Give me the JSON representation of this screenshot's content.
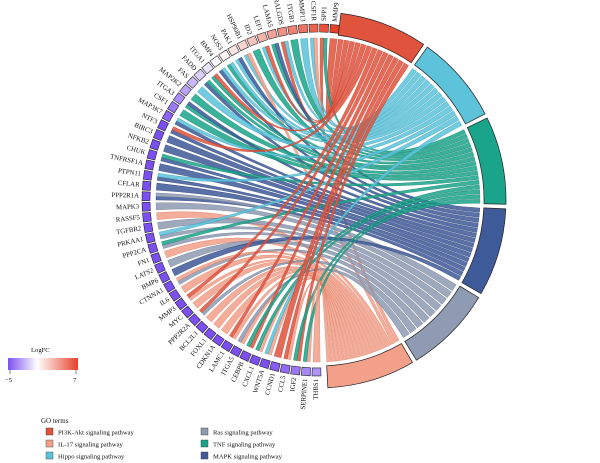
{
  "figure": {
    "genes": [
      "MMP9",
      "SPP1",
      "CSF1R",
      "MMP13",
      "ITGB1",
      "RALGDS",
      "LAMA5",
      "LEF1",
      "ID2",
      "HSP90B1",
      "PAK1",
      "NOS3",
      "BMP4",
      "ITGA1",
      "FADD",
      "FAS",
      "MAP2K2",
      "ITGA3",
      "CSF1",
      "MAP3K7",
      "NTF3",
      "BIRC3",
      "NFKB2",
      "CHUK",
      "TNFRSF1A",
      "PTPN11",
      "CFLAR",
      "PPP2R1A",
      "MAPK3",
      "RASSF5",
      "TGFBR2",
      "PRKAA1",
      "PPP2CA",
      "FN1",
      "LATS2",
      "BMP6",
      "CTNNA1",
      "IL6",
      "MMP3",
      "MYC",
      "PPP2R2A",
      "BCL2L1",
      "FOXL1",
      "CDKN1A",
      "LAMC1",
      "ITGA5",
      "CEBPB",
      "CXCL1",
      "WNT5A",
      "CCND1",
      "CCL5",
      "IGF2",
      "SERPINE1",
      "THBS1"
    ],
    "logfc": [
      7.0,
      6.4,
      5.8,
      5.2,
      4.6,
      4.0,
      3.4,
      2.8,
      2.2,
      1.6,
      1.0,
      0.4,
      -0.2,
      -0.8,
      -1.4,
      -2.0,
      -2.6,
      -3.2,
      -3.8,
      -4.4,
      -5.0,
      -5.0,
      -5.0,
      -5.0,
      -5.0,
      -5.0,
      -5.0,
      -5.0,
      -5.0,
      -5.0,
      -5.0,
      -5.0,
      -5.0,
      -5.0,
      -5.0,
      -5.0,
      -5.0,
      -5.0,
      -5.0,
      -5.0,
      -5.0,
      -5.0,
      -5.0,
      -5.0,
      -5.0,
      -5.0,
      -5.0,
      -5.0,
      -5.0,
      -4.6,
      -4.2,
      -3.8,
      -3.4,
      -3.0
    ],
    "logfc_scale": {
      "title": "LogFC",
      "min_label": "−5",
      "max_label": "7",
      "min": -5,
      "max": 7,
      "low_color": "#7b4ff0",
      "mid_color": "#ffffff",
      "high_color": "#e8412b"
    },
    "pathways": [
      {
        "name": "PI3K-Akt signaling pathway",
        "color": "#e0533c",
        "edge": "#c0392b"
      },
      {
        "name": "Hippo signaling pathway",
        "color": "#5cc3da",
        "edge": "#2f9bb4"
      },
      {
        "name": "TNF signaling pathway",
        "color": "#1aa58b",
        "edge": "#0f7c68"
      },
      {
        "name": "MAPK signaling pathway",
        "color": "#3e5a98",
        "edge": "#253d72"
      },
      {
        "name": "Ras signaling pathway",
        "color": "#8f9bb3",
        "edge": "#67738c"
      },
      {
        "name": "IL-17 signaling pathway",
        "color": "#f2a089",
        "edge": "#d97a5f"
      }
    ],
    "legend": {
      "title": "GO terms",
      "items": [
        {
          "label": "PI3K-Akt signaling pathway",
          "color": "#e0533c"
        },
        {
          "label": "Ras signaling pathway",
          "color": "#8f9bb3"
        },
        {
          "label": "IL-17 signaling pathway",
          "color": "#f2a089"
        },
        {
          "label": "TNF signaling pathway",
          "color": "#1aa58b"
        },
        {
          "label": "Hippo signaling pathway",
          "color": "#5cc3da"
        },
        {
          "label": "MAPK signaling pathway",
          "color": "#3e5a98"
        }
      ]
    }
  }
}
